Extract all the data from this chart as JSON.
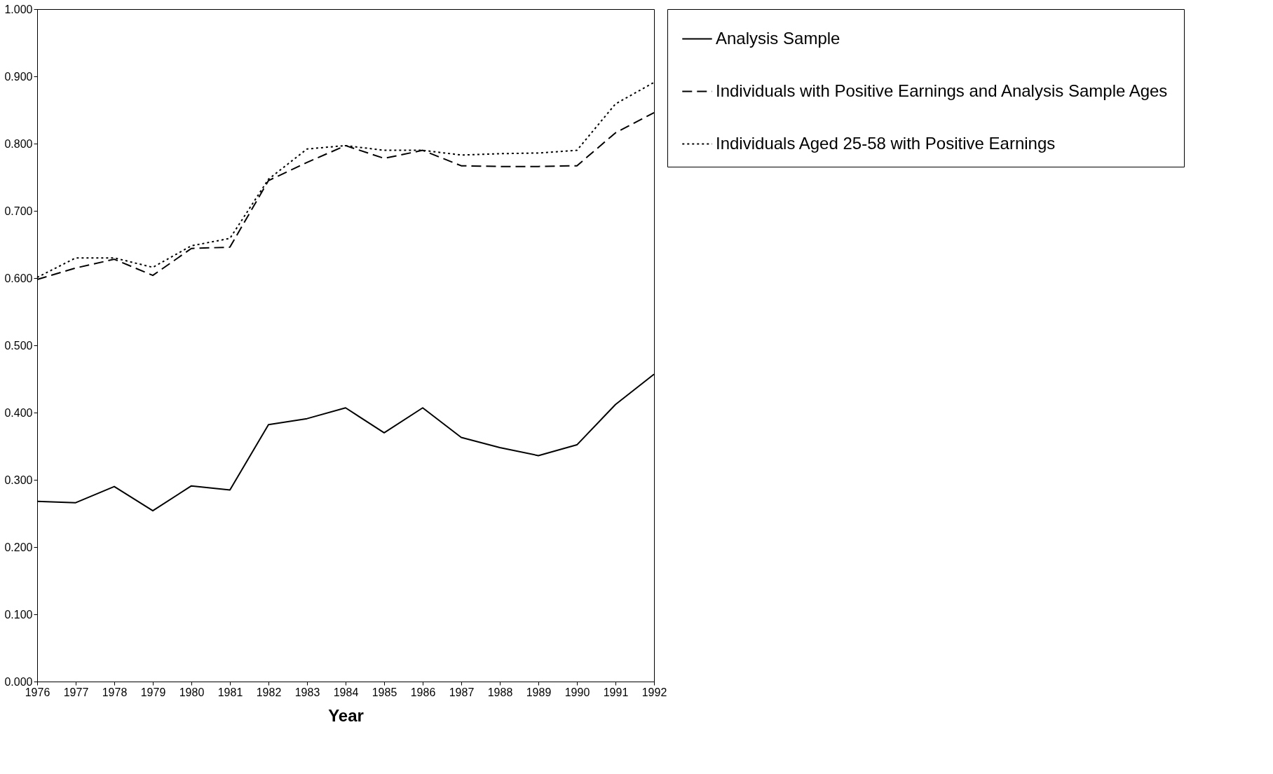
{
  "chart_data": {
    "type": "line",
    "xlabel": "Year",
    "x": [
      1976,
      1977,
      1978,
      1979,
      1980,
      1981,
      1982,
      1983,
      1984,
      1985,
      1986,
      1987,
      1988,
      1989,
      1990,
      1991,
      1992
    ],
    "xlim": [
      1976,
      1992
    ],
    "xticks": [
      1976,
      1977,
      1978,
      1979,
      1980,
      1981,
      1982,
      1983,
      1984,
      1985,
      1986,
      1987,
      1988,
      1989,
      1990,
      1991,
      1992
    ],
    "ylim": [
      0,
      1
    ],
    "yticks": [
      {
        "value": 0,
        "label": "0.000"
      },
      {
        "value": 0.1,
        "label": "0.100"
      },
      {
        "value": 0.2,
        "label": "0.200"
      },
      {
        "value": 0.3,
        "label": "0.300"
      },
      {
        "value": 0.4,
        "label": "0.400"
      },
      {
        "value": 0.5,
        "label": "0.500"
      },
      {
        "value": 0.6,
        "label": "0.600"
      },
      {
        "value": 0.7,
        "label": "0.700"
      },
      {
        "value": 0.8,
        "label": "0.800"
      },
      {
        "value": 0.9,
        "label": "0.900"
      },
      {
        "value": 1,
        "label": "1.000"
      }
    ],
    "grid": false,
    "legend": "right",
    "marker": "none",
    "series": [
      {
        "name": "Analysis Sample",
        "color": "#000000",
        "line_style": "solid",
        "values": [
          0.268,
          0.266,
          0.29,
          0.254,
          0.291,
          0.285,
          0.382,
          0.391,
          0.407,
          0.37,
          0.407,
          0.363,
          0.348,
          0.336,
          0.352,
          0.412,
          0.457
        ]
      },
      {
        "name": "Individuals with Positive Earnings and Analysis Sample Ages",
        "color": "#000000",
        "line_style": "dashed",
        "values": [
          0.598,
          0.615,
          0.628,
          0.604,
          0.644,
          0.646,
          0.745,
          0.772,
          0.797,
          0.778,
          0.79,
          0.767,
          0.766,
          0.766,
          0.767,
          0.816,
          0.846
        ]
      },
      {
        "name": "Individuals Aged 25-58 with Positive Earnings",
        "color": "#000000",
        "line_style": "dotted",
        "values": [
          0.601,
          0.63,
          0.63,
          0.616,
          0.648,
          0.659,
          0.747,
          0.792,
          0.797,
          0.79,
          0.79,
          0.783,
          0.785,
          0.786,
          0.79,
          0.859,
          0.891
        ]
      }
    ]
  }
}
